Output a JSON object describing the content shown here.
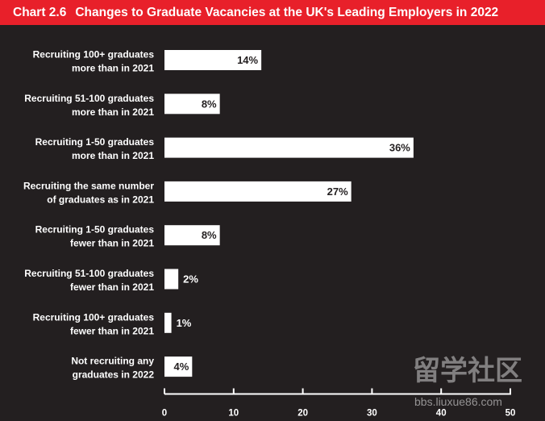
{
  "header": {
    "chart_number": "Chart 2.6",
    "title": "Changes to Graduate Vacancies at the UK's Leading Employers in 2022"
  },
  "colors": {
    "header_bg": "#e8202a",
    "background": "#231f20",
    "bar": "#ffffff",
    "text": "#ffffff",
    "value_text_inside": "#231f20"
  },
  "watermark": {
    "brand": "留学社区",
    "url": "bbs.liuxue86.com"
  },
  "chart_data": {
    "type": "bar",
    "orientation": "horizontal",
    "title": "Changes to Graduate Vacancies at the UK's Leading Employers in 2022",
    "categories": [
      [
        "Recruiting 100+ graduates",
        "more than in 2021"
      ],
      [
        "Recruiting 51-100 graduates",
        "more than in 2021"
      ],
      [
        "Recruiting 1-50 graduates",
        "more than in 2021"
      ],
      [
        "Recruiting the same number",
        "of graduates as in 2021"
      ],
      [
        "Recruiting 1-50 graduates",
        "fewer than in 2021"
      ],
      [
        "Recruiting 51-100 graduates",
        "fewer than in 2021"
      ],
      [
        "Recruiting 100+ graduates",
        "fewer than in 2021"
      ],
      [
        "Not recruiting any",
        "graduates in 2022"
      ]
    ],
    "values": [
      14,
      8,
      36,
      27,
      8,
      2,
      1,
      4
    ],
    "value_labels": [
      "14%",
      "8%",
      "36%",
      "27%",
      "8%",
      "2%",
      "1%",
      "4%"
    ],
    "xlim": [
      0,
      50
    ],
    "xticks": [
      0,
      10,
      20,
      30,
      40,
      50
    ],
    "xtick_labels": [
      "0",
      "10",
      "20",
      "30",
      "40",
      "50"
    ],
    "grid": false,
    "legend": false
  }
}
